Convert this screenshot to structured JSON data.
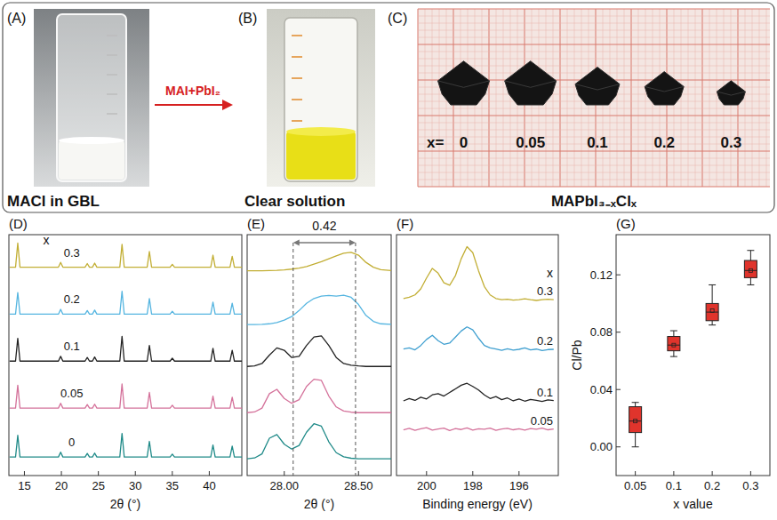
{
  "photos": {
    "A": {
      "letter": "(A)",
      "caption": "MACl in GBL"
    },
    "arrow_label": "MAI+PbI₂",
    "B": {
      "letter": "(B)",
      "caption": "Clear solution"
    },
    "C": {
      "letter": "(C)",
      "caption": "MAPbI₃₋ₓClₓ",
      "x_prefix": "x=",
      "x_values": [
        "0",
        "0.05",
        "0.1",
        "0.2",
        "0.3"
      ]
    }
  },
  "chart_data": [
    {
      "type": "line",
      "title": "(D)",
      "x_label": "2θ (°)",
      "series_heading": "x",
      "x": [
        13,
        13.8,
        14.1,
        14.4,
        19.6,
        19.9,
        20.2,
        23.2,
        23.5,
        23.8,
        24.2,
        24.5,
        24.8,
        27.9,
        28.2,
        28.5,
        31.6,
        31.9,
        32.2,
        34.7,
        35.0,
        35.3,
        40.2,
        40.5,
        40.8,
        42.8,
        43.1,
        43.4,
        44.4
      ],
      "xlim": [
        12.9,
        44.4
      ],
      "xticks": [
        15,
        20,
        25,
        30,
        35,
        40
      ],
      "ylim": [
        0,
        100
      ],
      "tick_labels": "x",
      "series": [
        {
          "name": "0",
          "color": "#1f8a88",
          "values": [
            7.7,
            7.7,
            16.7,
            7.7,
            7.7,
            9.7,
            7.7,
            7.7,
            9.2,
            7.7,
            7.7,
            9.3,
            7.7,
            7.7,
            17.5,
            7.7,
            7.7,
            14.2,
            7.7,
            7.7,
            8.9,
            7.7,
            7.7,
            12.7,
            7.7,
            7.7,
            12.2,
            7.7,
            7.7
          ]
        },
        {
          "name": "0.05",
          "color": "#d4719a",
          "values": [
            28,
            28,
            37.5,
            28,
            28,
            30,
            28,
            28,
            29.5,
            28,
            28,
            29.6,
            28,
            28,
            38,
            28,
            28,
            34.5,
            28,
            28,
            29.2,
            28,
            28,
            33,
            28,
            28,
            32.5,
            28,
            28
          ]
        },
        {
          "name": "0.1",
          "color": "#222222",
          "values": [
            47.5,
            47.5,
            57,
            47.5,
            47.5,
            49.5,
            47.5,
            47.5,
            49,
            47.5,
            47.5,
            49.2,
            47.5,
            47.5,
            57.8,
            47.5,
            47.5,
            54,
            47.5,
            47.5,
            48.7,
            47.5,
            47.5,
            52.8,
            47.5,
            47.5,
            52,
            47.5,
            47.5
          ]
        },
        {
          "name": "0.2",
          "color": "#55b5e0",
          "values": [
            67,
            67,
            76,
            67,
            67,
            69,
            67,
            67,
            68.5,
            67,
            67,
            68.7,
            67,
            67,
            76.5,
            67,
            67,
            73.5,
            67,
            67,
            68.2,
            67,
            67,
            72,
            67,
            67,
            71.5,
            67,
            67
          ]
        },
        {
          "name": "0.3",
          "color": "#c2ae34",
          "values": [
            86.5,
            86.5,
            96.5,
            86.5,
            86.5,
            88.5,
            86.5,
            86.5,
            88,
            86.5,
            86.5,
            88.2,
            86.5,
            86.5,
            96,
            86.5,
            86.5,
            93,
            86.5,
            86.5,
            87.7,
            86.5,
            86.5,
            91.5,
            86.5,
            86.5,
            91,
            86.5,
            86.5
          ]
        }
      ]
    },
    {
      "type": "line",
      "title": "(E)",
      "x_label": "2θ (°)",
      "x": [
        27.75,
        27.8,
        27.85,
        27.9,
        27.95,
        28,
        28.05,
        28.1,
        28.15,
        28.2,
        28.25,
        28.3,
        28.35,
        28.4,
        28.45,
        28.5,
        28.55,
        28.6,
        28.65,
        28.72
      ],
      "xlim": [
        27.75,
        28.72
      ],
      "xticks": [
        {
          "value": 28,
          "label": "28.00"
        },
        {
          "value": 28.5,
          "label": "28.50"
        }
      ],
      "ylim": [
        0,
        100
      ],
      "tick_labels": "x",
      "annotation": {
        "x1": 28.06,
        "x2": 28.48,
        "text": "0.42"
      },
      "series": [
        {
          "color": "#1f8a88",
          "values": [
            7,
            7.3,
            9,
            15.5,
            17,
            13,
            11,
            12.5,
            18,
            21.5,
            20.5,
            14,
            9.5,
            7.8,
            7.2,
            7,
            7,
            7,
            7,
            7
          ]
        },
        {
          "color": "#d4719a",
          "values": [
            26.1,
            26.4,
            28,
            34,
            35.8,
            32,
            30,
            31.5,
            37,
            40,
            39.5,
            33,
            28.5,
            26.8,
            26.3,
            26.1,
            26.1,
            26.1,
            26.1,
            26.1
          ]
        },
        {
          "color": "#222222",
          "values": [
            45.3,
            45.5,
            46.5,
            50,
            53,
            52,
            49,
            49.5,
            54,
            57.5,
            58,
            54,
            49,
            46.5,
            45.8,
            45.5,
            45.3,
            45.3,
            45.3,
            45.3
          ]
        },
        {
          "color": "#55b5e0",
          "values": [
            62.7,
            62.7,
            62.8,
            63,
            63.5,
            64.5,
            66,
            68.5,
            71.5,
            73.5,
            74.5,
            74.8,
            74.5,
            74.9,
            74,
            71,
            66.5,
            64,
            63,
            62.8
          ]
        },
        {
          "color": "#c2ae34",
          "values": [
            85,
            85,
            85,
            85.1,
            85.2,
            85.4,
            85.7,
            86.1,
            86.8,
            87.8,
            88.8,
            90,
            91.2,
            92.3,
            92.7,
            91.5,
            88.5,
            86.5,
            85.5,
            85.1
          ]
        }
      ]
    },
    {
      "type": "line",
      "title": "(F)",
      "x_label": "Binding energy (eV)",
      "series_heading": "x",
      "x": [
        201,
        200.75,
        200.5,
        200.25,
        200,
        199.75,
        199.5,
        199.25,
        199,
        198.75,
        198.5,
        198.25,
        198,
        197.75,
        197.5,
        197.25,
        197,
        196.75,
        196.5,
        196.25,
        196,
        195.75,
        195.5,
        195.25,
        195,
        194.75,
        194.5
      ],
      "xlim": [
        201.3,
        194.3
      ],
      "xticks": [
        200,
        198,
        196
      ],
      "ylim": [
        0,
        100
      ],
      "tick_labels": "x",
      "series": [
        {
          "name": "0.3",
          "color": "#c2ae34",
          "values": [
            73.5,
            74,
            75,
            77.5,
            82,
            86,
            84,
            80,
            79,
            83,
            90,
            95,
            92.5,
            85,
            78.5,
            75,
            73.5,
            73,
            73.2,
            72.8,
            73,
            73.4,
            73,
            72.7,
            73,
            73.2,
            73
          ]
        },
        {
          "name": "0.2",
          "color": "#3f9fd0",
          "values": [
            52.5,
            53,
            52.2,
            54,
            56.5,
            58.2,
            56,
            54.5,
            55,
            57.5,
            60,
            61.7,
            60.5,
            57,
            54,
            53,
            52.5,
            52,
            52.6,
            52.1,
            52.4,
            53,
            52.2,
            52.5,
            51.9,
            52.3,
            52.4
          ]
        },
        {
          "name": "0.1",
          "color": "#222222",
          "values": [
            31,
            32,
            31.2,
            32.5,
            31.8,
            33.5,
            34,
            33,
            34.5,
            36,
            37.5,
            38.3,
            37,
            35.5,
            33.5,
            32,
            32.8,
            31.5,
            32.2,
            31,
            31.8,
            30.9,
            31.6,
            31.2,
            30.8,
            31.4,
            31.1
          ]
        },
        {
          "name": "0.05",
          "color": "#d4719a",
          "values": [
            19,
            19.6,
            18.8,
            19.4,
            19.9,
            18.9,
            19.3,
            19.7,
            18.7,
            19.5,
            19.1,
            19.8,
            18.9,
            19.4,
            19.2,
            19.7,
            18.8,
            19.3,
            19.6,
            19,
            19.4,
            18.9,
            19.5,
            19.2,
            19.7,
            19,
            19.3
          ]
        }
      ]
    },
    {
      "type": "box",
      "title": "(G)",
      "x_label": "x value",
      "y_label": "Cl/Pb",
      "categories": [
        "0.05",
        "0.1",
        "0.2",
        "0.3"
      ],
      "ylim": [
        -0.02,
        0.148
      ],
      "yticks": [
        {
          "value": 0,
          "label": "0.00"
        },
        {
          "value": 0.04,
          "label": "0.04"
        },
        {
          "value": 0.08,
          "label": "0.08"
        },
        {
          "value": 0.12,
          "label": "0.12"
        }
      ],
      "min": [
        0.0,
        0.063,
        0.085,
        0.113
      ],
      "q1": [
        0.01,
        0.067,
        0.088,
        0.118
      ],
      "median": [
        0.018,
        0.071,
        0.094,
        0.123
      ],
      "q3": [
        0.028,
        0.077,
        0.1,
        0.13
      ],
      "max": [
        0.031,
        0.081,
        0.113,
        0.137
      ],
      "mean": [
        0.018,
        0.071,
        0.095,
        0.123
      ],
      "color": "#e0342c"
    }
  ]
}
